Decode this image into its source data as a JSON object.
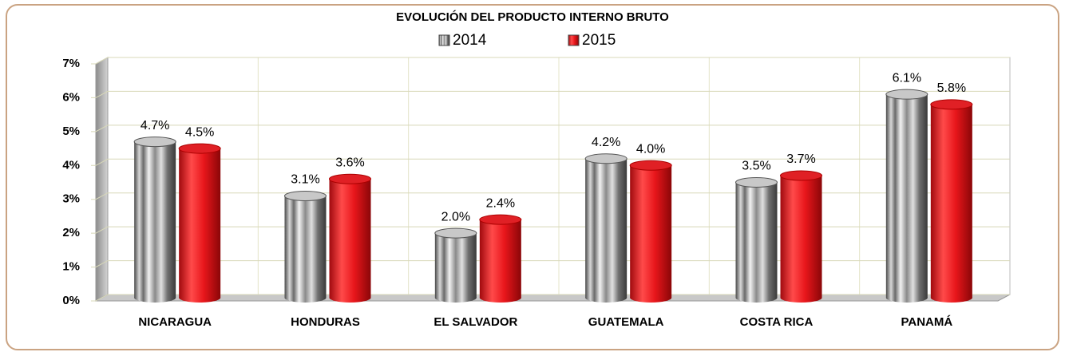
{
  "chart_data": {
    "type": "bar",
    "title": "EVOLUCIÓN DEL PRODUCTO INTERNO BRUTO",
    "categories": [
      "NICARAGUA",
      "HONDURAS",
      "EL SALVADOR",
      "GUATEMALA",
      "COSTA RICA",
      "PANAMÁ"
    ],
    "series": [
      {
        "name": "2014",
        "color": "#9a9a9a",
        "values": [
          4.7,
          3.1,
          2.0,
          4.2,
          3.5,
          6.1
        ],
        "value_labels": [
          "4.7%",
          "3.1%",
          "2.0%",
          "4.2%",
          "3.5%",
          "6.1%"
        ]
      },
      {
        "name": "2015",
        "color": "#e8161b",
        "values": [
          4.5,
          3.6,
          2.4,
          4.0,
          3.7,
          5.8
        ],
        "value_labels": [
          "4.5%",
          "3.6%",
          "2.4%",
          "4.0%",
          "3.7%",
          "5.8%"
        ]
      }
    ],
    "ylim": [
      0,
      7
    ],
    "yticks": [
      {
        "value": 0,
        "label": "0%"
      },
      {
        "value": 1,
        "label": "1%"
      },
      {
        "value": 2,
        "label": "2%"
      },
      {
        "value": 3,
        "label": "3%"
      },
      {
        "value": 4,
        "label": "4%"
      },
      {
        "value": 5,
        "label": "5%"
      },
      {
        "value": 6,
        "label": "6%"
      },
      {
        "value": 7,
        "label": "7%"
      }
    ],
    "grid": true,
    "legend": "top"
  }
}
